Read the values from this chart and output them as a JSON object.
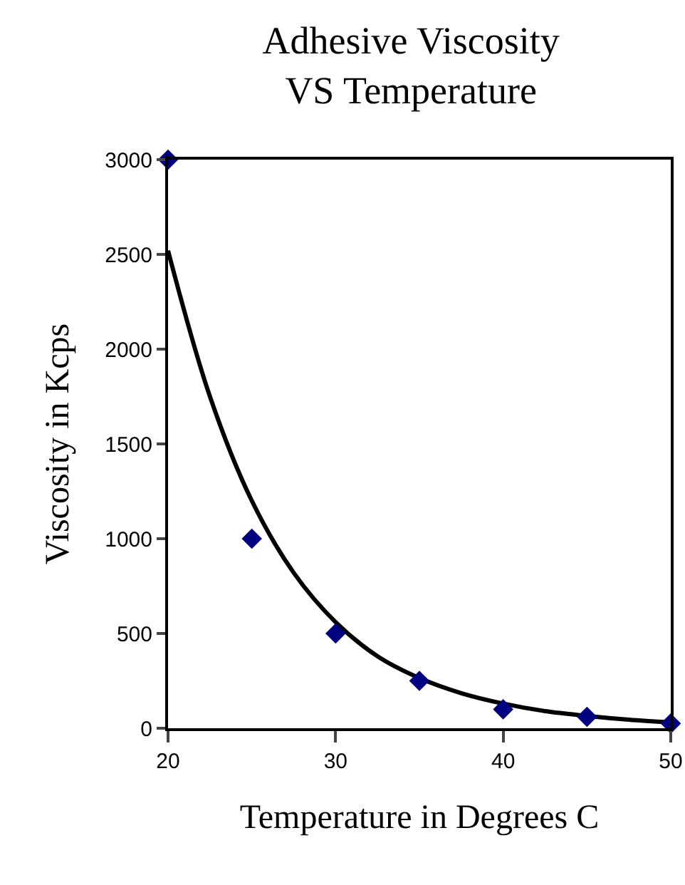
{
  "chart_data": {
    "type": "scatter",
    "title": "Adhesive Viscosity\nVS Temperature",
    "xlabel": "Temperature in Degrees C",
    "ylabel": "Viscosity in Kcps",
    "xlim": [
      20,
      50
    ],
    "xticks": [
      20,
      30,
      40,
      50
    ],
    "ylim": [
      0,
      3000
    ],
    "yticks": [
      0,
      500,
      1000,
      1500,
      2000,
      2500,
      3000
    ],
    "grid": false,
    "legend": false,
    "series": [
      {
        "marker": "diamond",
        "color": "#000080",
        "x": [
          20,
          25,
          30,
          35,
          40,
          45,
          50
        ],
        "values": [
          3000,
          1000,
          500,
          250,
          100,
          60,
          25
        ]
      },
      {
        "type": "line",
        "marker": "none",
        "line_style": "solid",
        "color": "#000000",
        "x": [
          20,
          22.5,
          25,
          27.5,
          30,
          32.5,
          35,
          37.5,
          40,
          42.5,
          45,
          47.5,
          50
        ],
        "values": [
          2520,
          1750,
          1200,
          820,
          560,
          380,
          265,
          185,
          130,
          90,
          65,
          45,
          30
        ]
      }
    ]
  }
}
